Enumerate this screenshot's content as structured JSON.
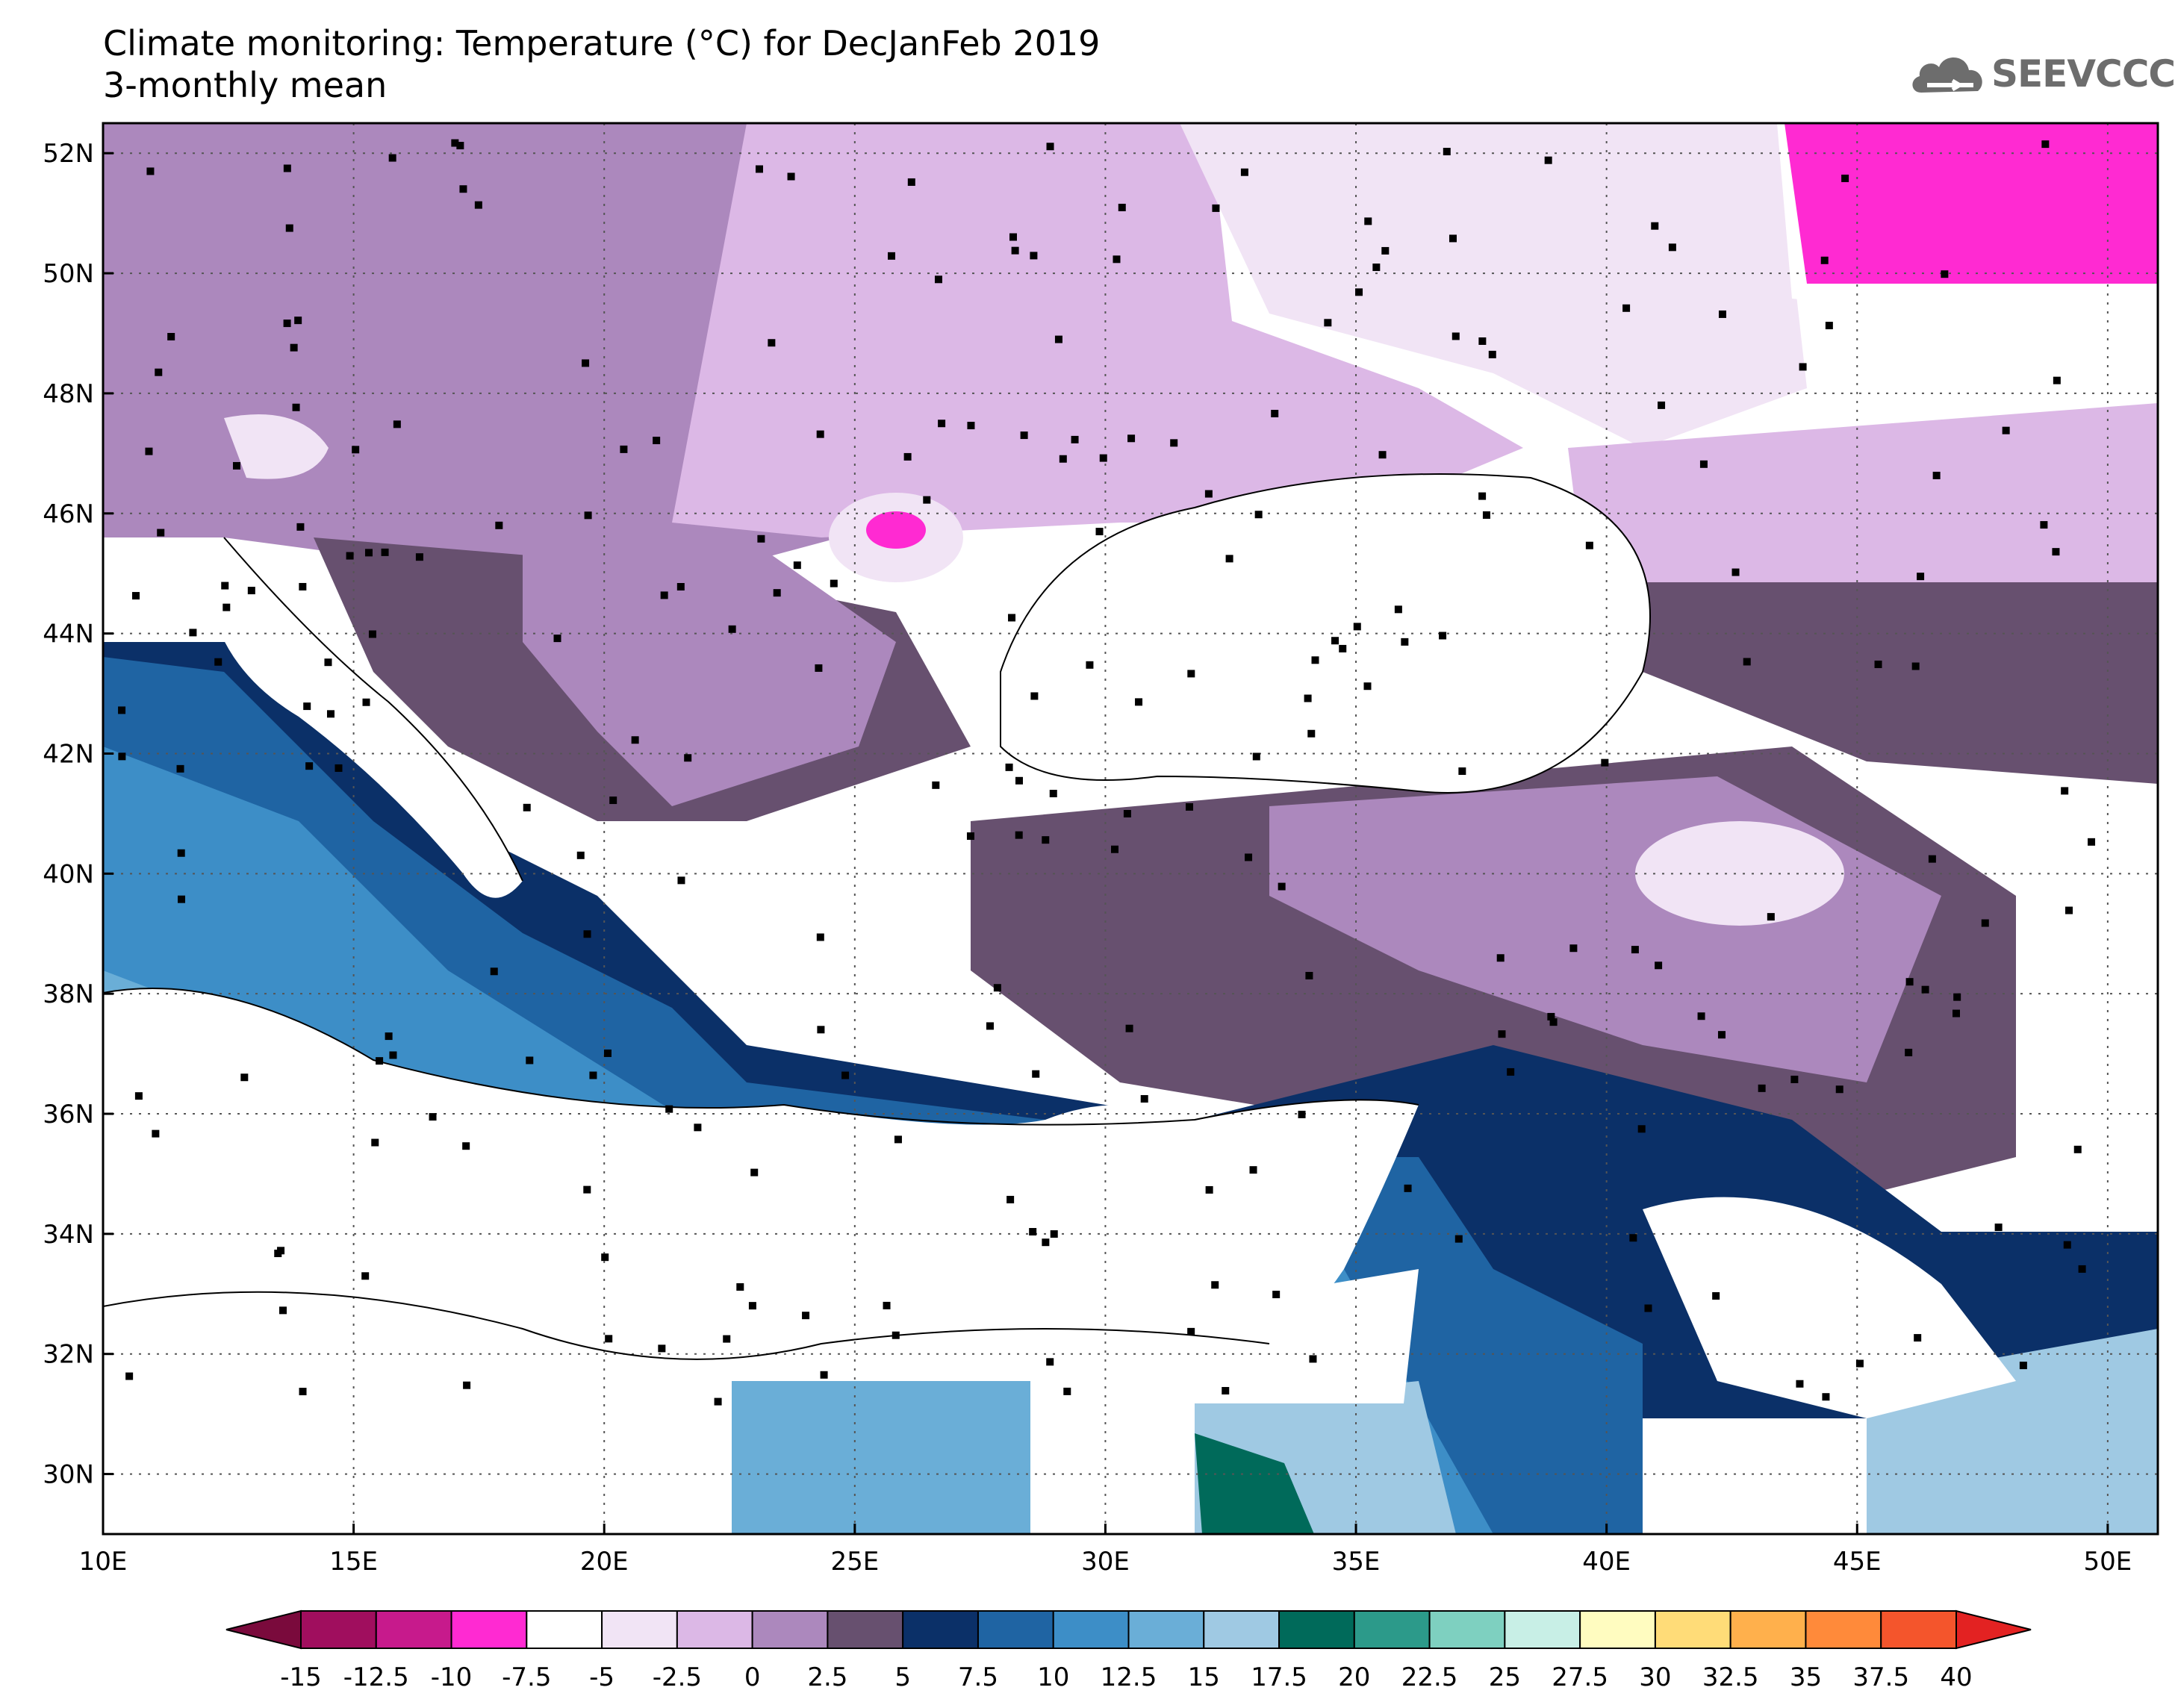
{
  "title": {
    "line1": "Climate monitoring: Temperature (°C) for DecJanFeb 2019",
    "line2": "3-monthly mean"
  },
  "logo": {
    "text": "SEEVCCC"
  },
  "map": {
    "lon_range": [
      10,
      51
    ],
    "lat_range": [
      29,
      52.5
    ],
    "lon_ticks": [
      {
        "value": 10,
        "label": "10E"
      },
      {
        "value": 15,
        "label": "15E"
      },
      {
        "value": 20,
        "label": "20E"
      },
      {
        "value": 25,
        "label": "25E"
      },
      {
        "value": 30,
        "label": "30E"
      },
      {
        "value": 35,
        "label": "35E"
      },
      {
        "value": 40,
        "label": "40E"
      },
      {
        "value": 45,
        "label": "45E"
      },
      {
        "value": 50,
        "label": "50E"
      }
    ],
    "lat_ticks": [
      {
        "value": 30,
        "label": "30N"
      },
      {
        "value": 32,
        "label": "32N"
      },
      {
        "value": 34,
        "label": "34N"
      },
      {
        "value": 36,
        "label": "36N"
      },
      {
        "value": 38,
        "label": "38N"
      },
      {
        "value": 40,
        "label": "40N"
      },
      {
        "value": 42,
        "label": "42N"
      },
      {
        "value": 44,
        "label": "44N"
      },
      {
        "value": 46,
        "label": "46N"
      },
      {
        "value": 48,
        "label": "48N"
      },
      {
        "value": 50,
        "label": "50N"
      },
      {
        "value": 52,
        "label": "52N"
      }
    ]
  },
  "colorbar": {
    "levels": [
      "-15",
      "-12.5",
      "-10",
      "-7.5",
      "-5",
      "-2.5",
      "0",
      "2.5",
      "5",
      "7.5",
      "10",
      "12.5",
      "15",
      "17.5",
      "20",
      "22.5",
      "25",
      "27.5",
      "30",
      "32.5",
      "35",
      "37.5",
      "40"
    ],
    "low_arrow_color": "#7a0a3c",
    "high_arrow_color": "#e32222",
    "colors": [
      "#a00e5e",
      "#c71a8c",
      "#ff2ad2",
      "#ffffff",
      "#f1e4f5",
      "#dcb8e6",
      "#ac88bd",
      "#67506f",
      "#0b3068",
      "#1f64a3",
      "#3d8ec7",
      "#6aaed7",
      "#9fc9e3",
      "#006a5a",
      "#2c9a8a",
      "#7ed0c0",
      "#c8efe6",
      "#fffcc0",
      "#ffdc78",
      "#ffb04c",
      "#ff8a3a",
      "#f4552c"
    ]
  }
}
